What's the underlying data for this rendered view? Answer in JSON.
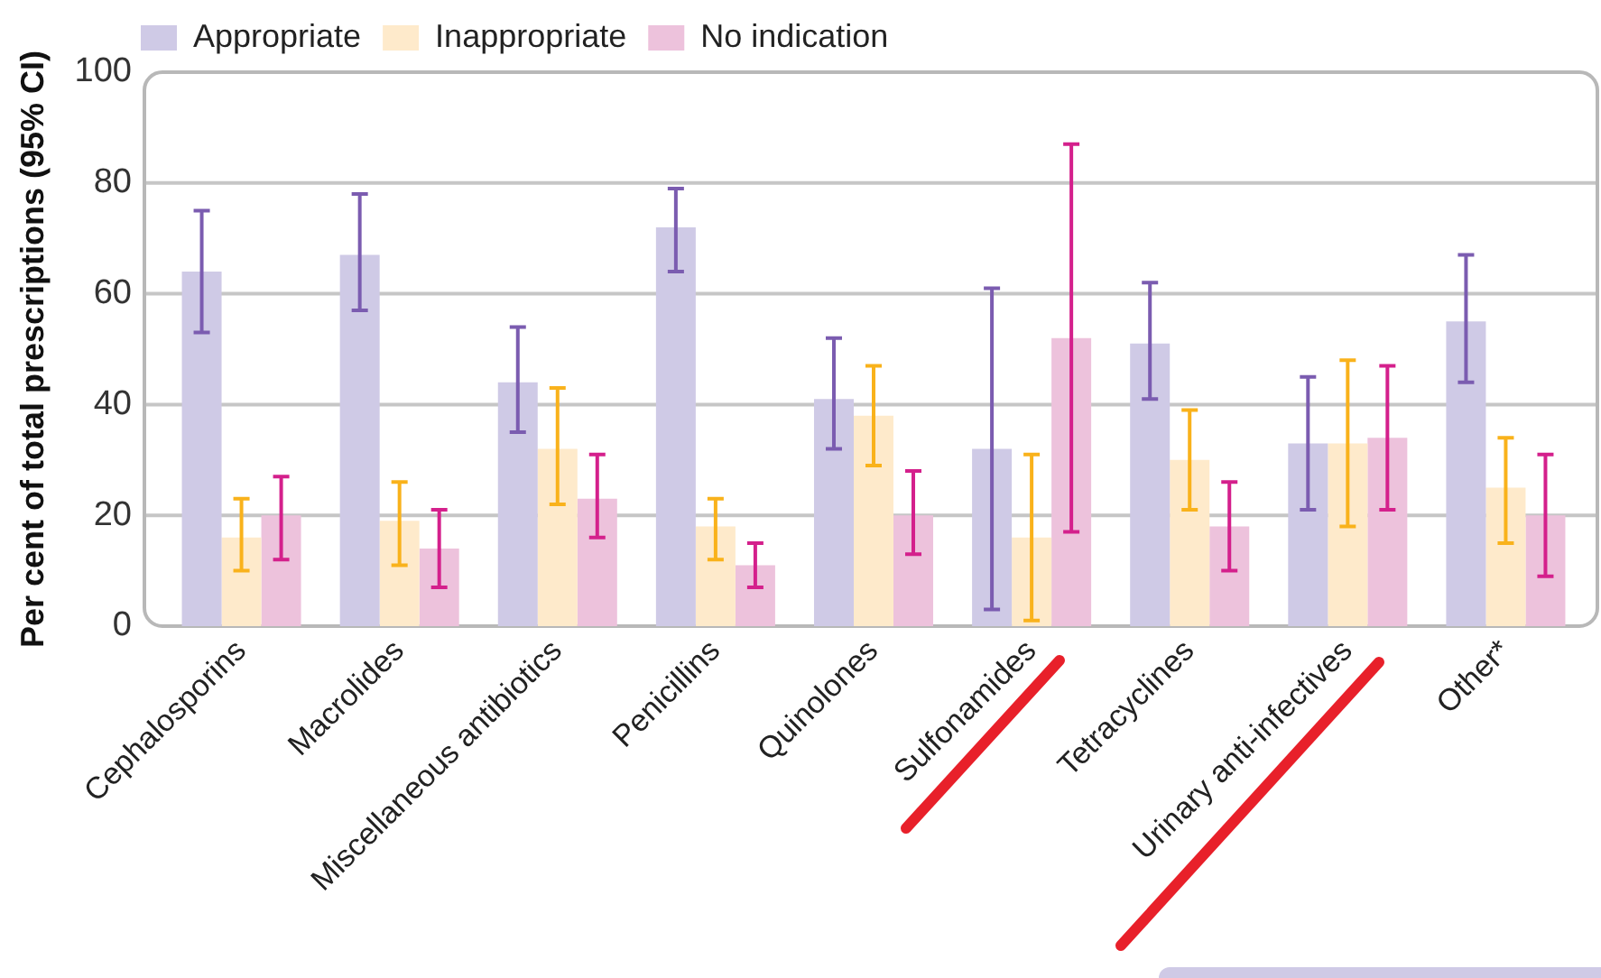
{
  "chart_data": {
    "type": "bar",
    "ylabel": "Per cent of total prescriptions (95% CI)",
    "categories": [
      "Cephalosporins",
      "Macrolides",
      "Miscellaneous antibiotics",
      "Penicillins",
      "Quinolones",
      "Sulfonamides",
      "Tetracyclines",
      "Urinary anti-infectives",
      "Other*"
    ],
    "series": [
      {
        "name": "Appropriate",
        "color": "#cfcae6",
        "values": [
          64,
          67,
          44,
          72,
          41,
          32,
          51,
          33,
          55
        ],
        "errors": [
          [
            53,
            75
          ],
          [
            57,
            78
          ],
          [
            35,
            54
          ],
          [
            64,
            79
          ],
          [
            32,
            52
          ],
          [
            3,
            61
          ],
          [
            41,
            62
          ],
          [
            21,
            45
          ],
          [
            44,
            67
          ]
        ]
      },
      {
        "name": "Inappropriate",
        "color": "#feeacb",
        "values": [
          16,
          19,
          32,
          18,
          38,
          16,
          30,
          33,
          25
        ],
        "errors": [
          [
            10,
            23
          ],
          [
            11,
            26
          ],
          [
            22,
            43
          ],
          [
            12,
            23
          ],
          [
            29,
            47
          ],
          [
            1,
            31
          ],
          [
            21,
            39
          ],
          [
            18,
            48
          ],
          [
            15,
            34
          ]
        ]
      },
      {
        "name": "No indication",
        "color": "#edc2dc",
        "values": [
          20,
          14,
          23,
          11,
          20,
          52,
          18,
          34,
          20
        ],
        "errors": [
          [
            12,
            27
          ],
          [
            7,
            21
          ],
          [
            16,
            31
          ],
          [
            7,
            15
          ],
          [
            13,
            28
          ],
          [
            17,
            87
          ],
          [
            10,
            26
          ],
          [
            21,
            47
          ],
          [
            9,
            31
          ]
        ]
      }
    ],
    "ylim": [
      0,
      100
    ],
    "yticks": [
      0,
      20,
      40,
      60,
      80,
      100
    ],
    "grid": "y",
    "legend": "top left"
  }
}
